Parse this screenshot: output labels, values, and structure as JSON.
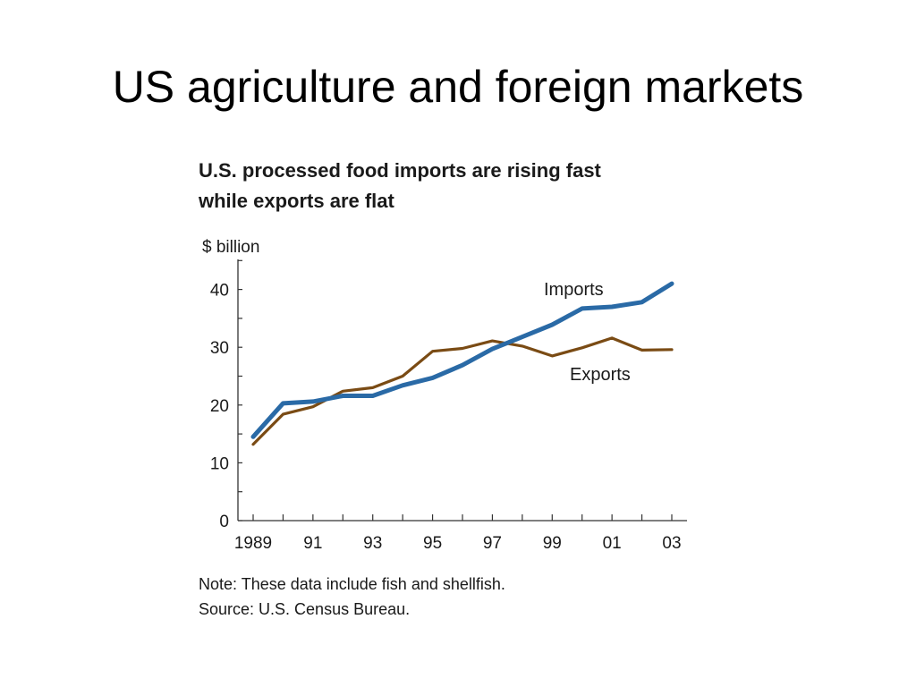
{
  "slide": {
    "title": "US agriculture and foreign markets"
  },
  "chart_data": {
    "type": "line",
    "title": "U.S. processed food imports are rising fast",
    "subtitle": "while exports are flat",
    "ylabel": "$ billion",
    "xlabel": "",
    "ylim": [
      0,
      45
    ],
    "yticks": [
      0,
      10,
      20,
      30,
      40
    ],
    "xlim": [
      1989,
      2003
    ],
    "xticks": [
      {
        "value": 1989,
        "label": "1989"
      },
      {
        "value": 1991,
        "label": "91"
      },
      {
        "value": 1993,
        "label": "93"
      },
      {
        "value": 1995,
        "label": "95"
      },
      {
        "value": 1997,
        "label": "97"
      },
      {
        "value": 1999,
        "label": "99"
      },
      {
        "value": 2001,
        "label": "01"
      },
      {
        "value": 2003,
        "label": "03"
      }
    ],
    "x": [
      1989,
      1990,
      1991,
      1992,
      1993,
      1994,
      1995,
      1996,
      1997,
      1998,
      1999,
      2000,
      2001,
      2002,
      2003
    ],
    "series": [
      {
        "name": "Imports",
        "color": "#2a6aa6",
        "values": [
          14.5,
          20.3,
          20.6,
          21.6,
          21.6,
          23.4,
          24.7,
          26.9,
          29.7,
          31.8,
          33.9,
          36.7,
          37.0,
          37.8,
          41.0
        ]
      },
      {
        "name": "Exports",
        "color": "#7a4b14",
        "values": [
          13.2,
          18.4,
          19.7,
          22.4,
          23.0,
          25.0,
          29.3,
          29.8,
          31.1,
          30.2,
          28.5,
          29.9,
          31.6,
          29.5,
          29.6
        ]
      }
    ],
    "grid": false,
    "legend": "inline labels",
    "notes": [
      "Note: These data include fish and shellfish.",
      "Source: U.S. Census Bureau."
    ]
  }
}
